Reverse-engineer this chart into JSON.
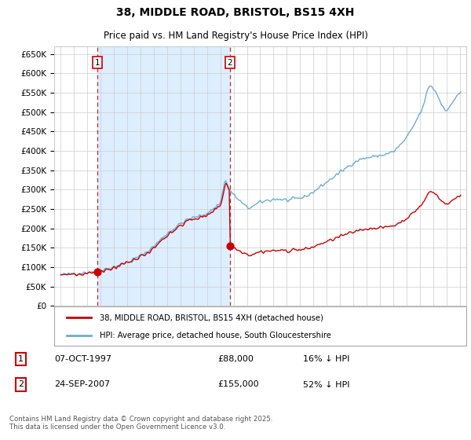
{
  "title": "38, MIDDLE ROAD, BRISTOL, BS15 4XH",
  "subtitle": "Price paid vs. HM Land Registry's House Price Index (HPI)",
  "legend_line1": "38, MIDDLE ROAD, BRISTOL, BS15 4XH (detached house)",
  "legend_line2": "HPI: Average price, detached house, South Gloucestershire",
  "annotation1_label": "1",
  "annotation1_date": "07-OCT-1997",
  "annotation1_price": "£88,000",
  "annotation1_hpi": "16% ↓ HPI",
  "annotation2_label": "2",
  "annotation2_date": "24-SEP-2007",
  "annotation2_price": "£155,000",
  "annotation2_hpi": "52% ↓ HPI",
  "footer": "Contains HM Land Registry data © Crown copyright and database right 2025.\nThis data is licensed under the Open Government Licence v3.0.",
  "red_color": "#cc0000",
  "blue_color": "#6aaed6",
  "blue_fill": "#ddeeff",
  "sale1_year": 1997.77,
  "sale1_value": 88000,
  "sale2_year": 2007.73,
  "sale2_value": 155000,
  "ylim": [
    0,
    670000
  ],
  "yticks": [
    0,
    50000,
    100000,
    150000,
    200000,
    250000,
    300000,
    350000,
    400000,
    450000,
    500000,
    550000,
    600000,
    650000
  ],
  "xlim_start": 1994.5,
  "xlim_end": 2025.5,
  "xticks": [
    1995,
    1996,
    1997,
    1998,
    1999,
    2000,
    2001,
    2002,
    2003,
    2004,
    2005,
    2006,
    2007,
    2008,
    2009,
    2010,
    2011,
    2012,
    2013,
    2014,
    2015,
    2016,
    2017,
    2018,
    2019,
    2020,
    2021,
    2022,
    2023,
    2024,
    2025
  ]
}
